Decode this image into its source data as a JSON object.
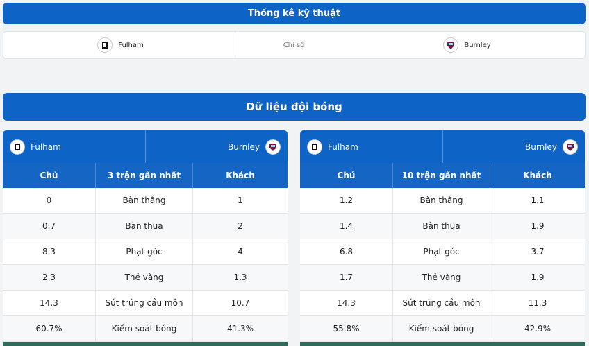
{
  "header": {
    "title": "Thống kê kỹ thuật"
  },
  "summary": {
    "home": "Fulham",
    "label": "Chỉ số",
    "away": "Burnley"
  },
  "section": {
    "title": "Dữ liệu đội bóng"
  },
  "tables": [
    {
      "home": "Fulham",
      "away": "Burnley",
      "columns": [
        "Chủ",
        "3 trận gần nhất",
        "Khách"
      ],
      "rows": [
        [
          "0",
          "Bàn thắng",
          "1"
        ],
        [
          "0.7",
          "Bàn thua",
          "2"
        ],
        [
          "8.3",
          "Phạt góc",
          "4"
        ],
        [
          "2.3",
          "Thẻ vàng",
          "1.3"
        ],
        [
          "14.3",
          "Sút trúng cầu môn",
          "10.7"
        ],
        [
          "60.7%",
          "Kiểm soát bóng",
          "41.3%"
        ]
      ]
    },
    {
      "home": "Fulham",
      "away": "Burnley",
      "columns": [
        "Chủ",
        "10 trận gần nhất",
        "Khách"
      ],
      "rows": [
        [
          "1.2",
          "Bàn thắng",
          "1.1"
        ],
        [
          "1.4",
          "Bàn thua",
          "1.9"
        ],
        [
          "6.8",
          "Phạt góc",
          "3.7"
        ],
        [
          "1.7",
          "Thẻ vàng",
          "1.9"
        ],
        [
          "14.3",
          "Sút trúng cầu môn",
          "11.3"
        ],
        [
          "55.8%",
          "Kiểm soát bóng",
          "42.9%"
        ]
      ]
    }
  ]
}
